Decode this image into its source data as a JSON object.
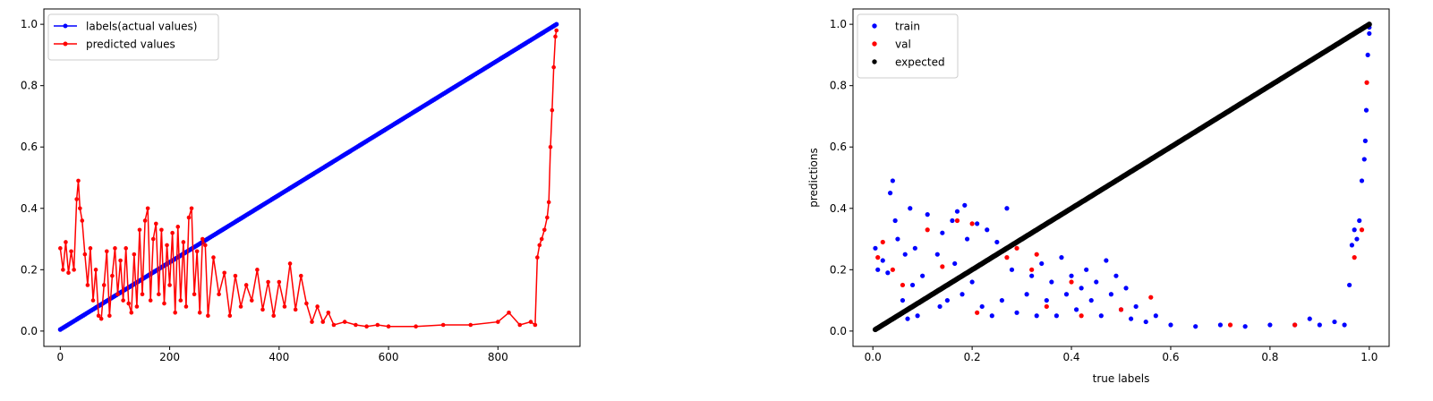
{
  "chart_data": [
    {
      "type": "line",
      "title": "",
      "xlabel": "",
      "ylabel": "",
      "xlim": [
        -30,
        950
      ],
      "ylim": [
        -0.05,
        1.05
      ],
      "xticks": [
        0,
        200,
        400,
        600,
        800
      ],
      "yticks": [
        0.0,
        0.2,
        0.4,
        0.6,
        0.8,
        1.0
      ],
      "grid": false,
      "legend_position": "top-left",
      "series": [
        {
          "name": "labels(actual values)",
          "color": "#0000ff",
          "marker": "dot",
          "x": [
            0,
            100,
            200,
            300,
            400,
            500,
            600,
            700,
            800,
            907
          ],
          "y": [
            0.005,
            0.114,
            0.224,
            0.333,
            0.443,
            0.552,
            0.662,
            0.771,
            0.881,
            1.0
          ]
        },
        {
          "name": "predicted values",
          "color": "#ff0000",
          "marker": "dot",
          "x": [
            0,
            5,
            10,
            15,
            20,
            25,
            30,
            33,
            36,
            40,
            45,
            50,
            55,
            60,
            65,
            70,
            75,
            80,
            85,
            90,
            95,
            100,
            105,
            110,
            115,
            120,
            125,
            130,
            135,
            140,
            145,
            150,
            155,
            160,
            165,
            170,
            175,
            180,
            185,
            190,
            195,
            200,
            205,
            210,
            215,
            220,
            225,
            230,
            235,
            240,
            245,
            250,
            255,
            260,
            265,
            270,
            280,
            290,
            300,
            310,
            320,
            330,
            340,
            350,
            360,
            370,
            380,
            390,
            400,
            410,
            420,
            430,
            440,
            450,
            460,
            470,
            480,
            490,
            500,
            520,
            540,
            560,
            580,
            600,
            650,
            700,
            750,
            800,
            820,
            840,
            860,
            868,
            872,
            876,
            880,
            885,
            890,
            893,
            896,
            899,
            902,
            905,
            907
          ],
          "y": [
            0.27,
            0.2,
            0.29,
            0.19,
            0.26,
            0.2,
            0.43,
            0.49,
            0.4,
            0.36,
            0.25,
            0.15,
            0.27,
            0.1,
            0.2,
            0.05,
            0.04,
            0.15,
            0.26,
            0.05,
            0.18,
            0.27,
            0.12,
            0.23,
            0.1,
            0.27,
            0.09,
            0.06,
            0.25,
            0.08,
            0.33,
            0.12,
            0.36,
            0.4,
            0.1,
            0.3,
            0.35,
            0.12,
            0.33,
            0.09,
            0.28,
            0.15,
            0.32,
            0.06,
            0.34,
            0.1,
            0.29,
            0.08,
            0.37,
            0.4,
            0.12,
            0.26,
            0.06,
            0.3,
            0.28,
            0.05,
            0.24,
            0.12,
            0.19,
            0.05,
            0.18,
            0.08,
            0.15,
            0.1,
            0.2,
            0.07,
            0.16,
            0.05,
            0.16,
            0.08,
            0.22,
            0.07,
            0.18,
            0.09,
            0.03,
            0.08,
            0.03,
            0.06,
            0.02,
            0.03,
            0.02,
            0.015,
            0.02,
            0.015,
            0.015,
            0.02,
            0.02,
            0.03,
            0.06,
            0.02,
            0.03,
            0.02,
            0.24,
            0.28,
            0.3,
            0.33,
            0.37,
            0.42,
            0.6,
            0.72,
            0.86,
            0.96,
            0.98
          ]
        }
      ]
    },
    {
      "type": "scatter",
      "title": "",
      "xlabel": "true labels",
      "ylabel": "predictions",
      "xlim": [
        -0.04,
        1.04
      ],
      "ylim": [
        -0.05,
        1.05
      ],
      "xticks": [
        0.0,
        0.2,
        0.4,
        0.6,
        0.8,
        1.0
      ],
      "yticks": [
        0.0,
        0.2,
        0.4,
        0.6,
        0.8,
        1.0
      ],
      "grid": false,
      "legend_position": "top-left",
      "series": [
        {
          "name": "train",
          "color": "#0000ff",
          "points": [
            [
              0.005,
              0.27
            ],
            [
              0.01,
              0.2
            ],
            [
              0.02,
              0.23
            ],
            [
              0.03,
              0.19
            ],
            [
              0.035,
              0.45
            ],
            [
              0.04,
              0.49
            ],
            [
              0.045,
              0.36
            ],
            [
              0.05,
              0.3
            ],
            [
              0.06,
              0.1
            ],
            [
              0.065,
              0.25
            ],
            [
              0.07,
              0.04
            ],
            [
              0.075,
              0.4
            ],
            [
              0.08,
              0.15
            ],
            [
              0.085,
              0.27
            ],
            [
              0.09,
              0.05
            ],
            [
              0.1,
              0.18
            ],
            [
              0.11,
              0.38
            ],
            [
              0.12,
              0.12
            ],
            [
              0.13,
              0.25
            ],
            [
              0.135,
              0.08
            ],
            [
              0.14,
              0.32
            ],
            [
              0.15,
              0.1
            ],
            [
              0.16,
              0.36
            ],
            [
              0.165,
              0.22
            ],
            [
              0.17,
              0.39
            ],
            [
              0.18,
              0.12
            ],
            [
              0.185,
              0.41
            ],
            [
              0.19,
              0.3
            ],
            [
              0.2,
              0.16
            ],
            [
              0.21,
              0.35
            ],
            [
              0.22,
              0.08
            ],
            [
              0.23,
              0.33
            ],
            [
              0.24,
              0.05
            ],
            [
              0.25,
              0.29
            ],
            [
              0.26,
              0.1
            ],
            [
              0.27,
              0.4
            ],
            [
              0.28,
              0.2
            ],
            [
              0.29,
              0.06
            ],
            [
              0.3,
              0.3
            ],
            [
              0.31,
              0.12
            ],
            [
              0.32,
              0.18
            ],
            [
              0.33,
              0.05
            ],
            [
              0.34,
              0.22
            ],
            [
              0.35,
              0.1
            ],
            [
              0.36,
              0.16
            ],
            [
              0.37,
              0.05
            ],
            [
              0.38,
              0.24
            ],
            [
              0.39,
              0.12
            ],
            [
              0.4,
              0.18
            ],
            [
              0.41,
              0.07
            ],
            [
              0.42,
              0.14
            ],
            [
              0.43,
              0.2
            ],
            [
              0.44,
              0.1
            ],
            [
              0.45,
              0.16
            ],
            [
              0.46,
              0.05
            ],
            [
              0.47,
              0.23
            ],
            [
              0.48,
              0.12
            ],
            [
              0.49,
              0.18
            ],
            [
              0.5,
              0.07
            ],
            [
              0.51,
              0.14
            ],
            [
              0.52,
              0.04
            ],
            [
              0.53,
              0.08
            ],
            [
              0.55,
              0.03
            ],
            [
              0.57,
              0.05
            ],
            [
              0.6,
              0.02
            ],
            [
              0.65,
              0.015
            ],
            [
              0.7,
              0.02
            ],
            [
              0.75,
              0.015
            ],
            [
              0.8,
              0.02
            ],
            [
              0.85,
              0.02
            ],
            [
              0.88,
              0.04
            ],
            [
              0.9,
              0.02
            ],
            [
              0.93,
              0.03
            ],
            [
              0.95,
              0.02
            ],
            [
              0.96,
              0.15
            ],
            [
              0.965,
              0.28
            ],
            [
              0.97,
              0.33
            ],
            [
              0.975,
              0.3
            ],
            [
              0.98,
              0.36
            ],
            [
              0.985,
              0.49
            ],
            [
              0.99,
              0.56
            ],
            [
              0.992,
              0.62
            ],
            [
              0.994,
              0.72
            ],
            [
              0.997,
              0.9
            ],
            [
              1.0,
              0.97
            ],
            [
              1.0,
              0.99
            ]
          ]
        },
        {
          "name": "val",
          "color": "#ff0000",
          "points": [
            [
              0.01,
              0.24
            ],
            [
              0.02,
              0.29
            ],
            [
              0.04,
              0.2
            ],
            [
              0.06,
              0.15
            ],
            [
              0.11,
              0.33
            ],
            [
              0.14,
              0.21
            ],
            [
              0.17,
              0.36
            ],
            [
              0.2,
              0.35
            ],
            [
              0.21,
              0.06
            ],
            [
              0.27,
              0.24
            ],
            [
              0.29,
              0.27
            ],
            [
              0.32,
              0.2
            ],
            [
              0.33,
              0.25
            ],
            [
              0.35,
              0.08
            ],
            [
              0.4,
              0.16
            ],
            [
              0.42,
              0.05
            ],
            [
              0.5,
              0.07
            ],
            [
              0.56,
              0.11
            ],
            [
              0.72,
              0.02
            ],
            [
              0.85,
              0.02
            ],
            [
              0.97,
              0.24
            ],
            [
              0.985,
              0.33
            ],
            [
              0.995,
              0.81
            ]
          ]
        },
        {
          "name": "expected",
          "color": "#000000",
          "points": [
            [
              0.005,
              0.005
            ],
            [
              1.0,
              1.0
            ]
          ]
        }
      ]
    }
  ]
}
